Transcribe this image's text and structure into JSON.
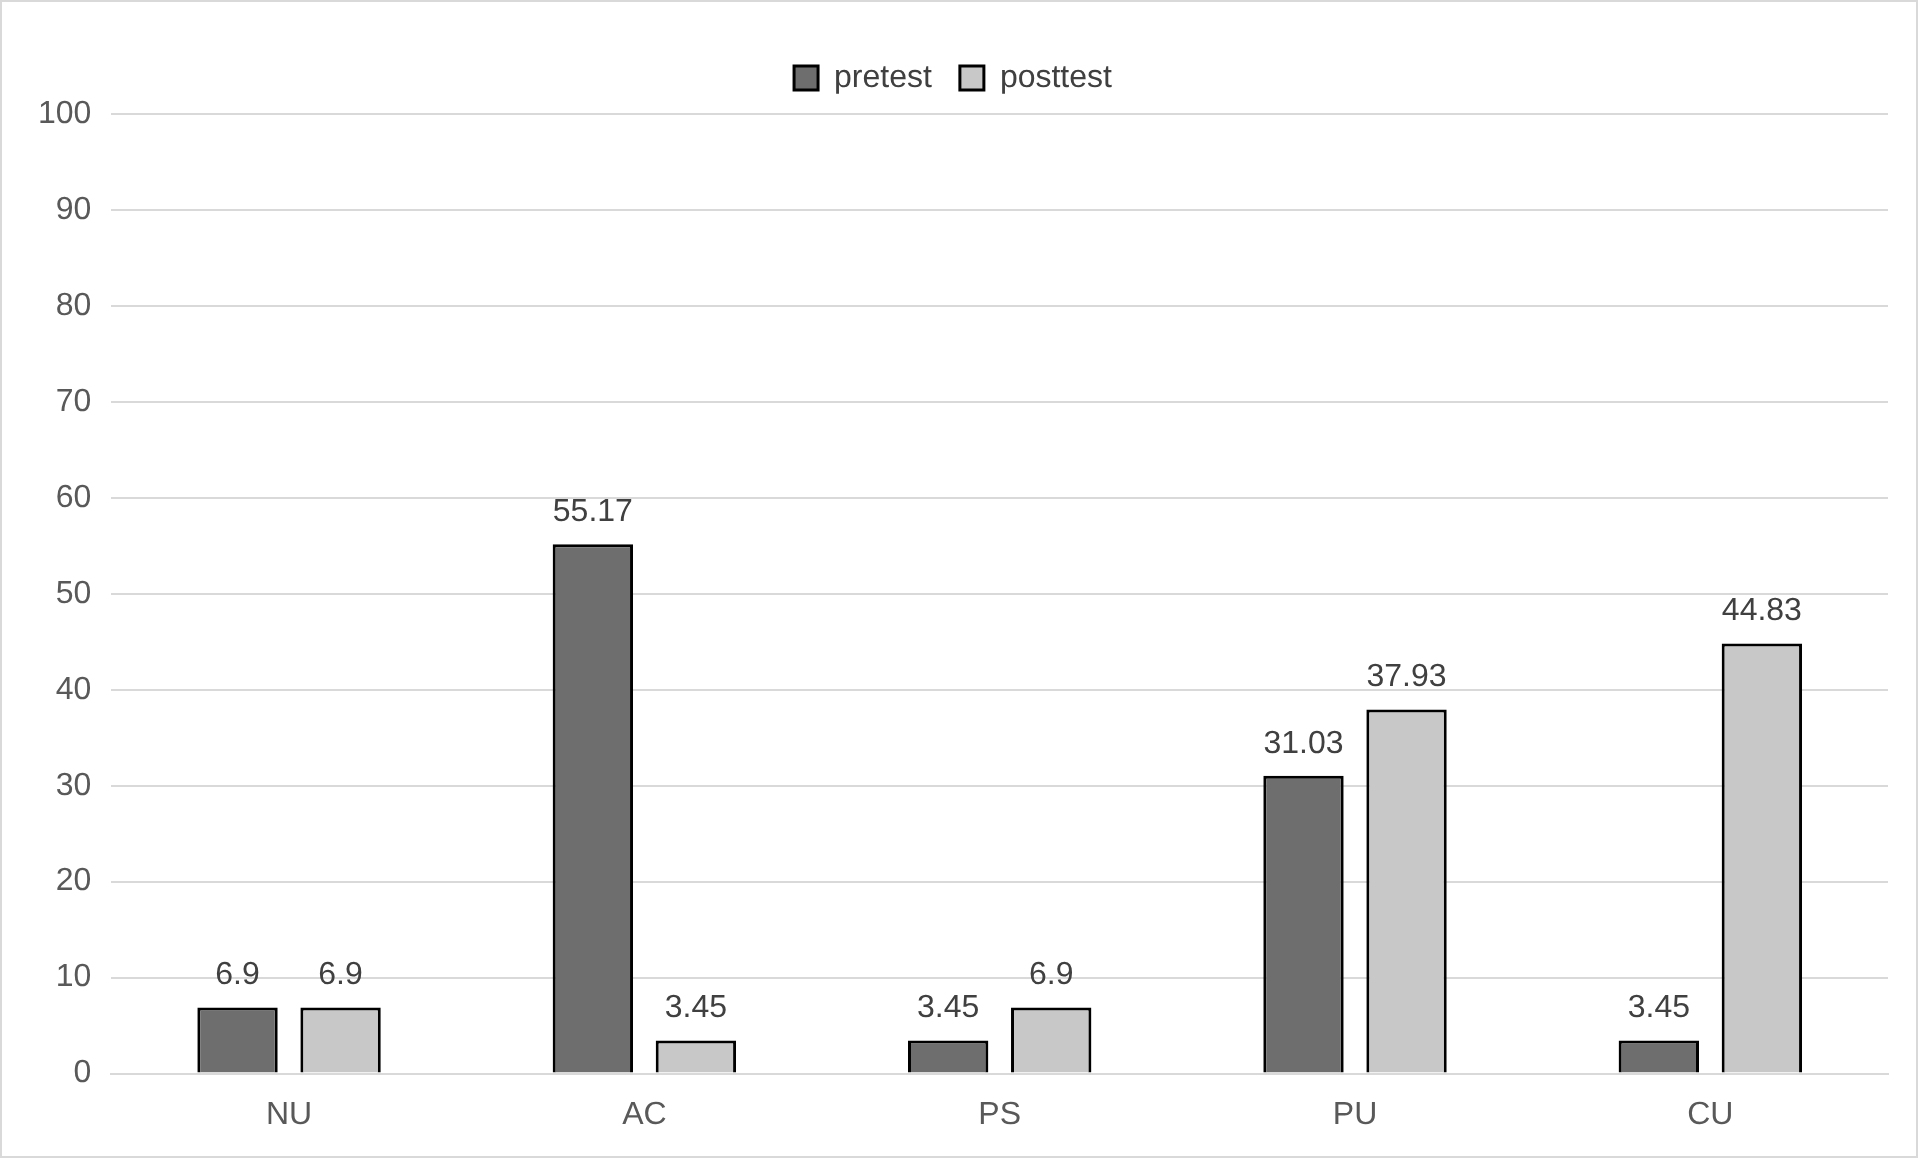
{
  "chart_data": {
    "type": "bar",
    "categories": [
      "NU",
      "AC",
      "PS",
      "PU",
      "CU"
    ],
    "series": [
      {
        "name": "pretest",
        "color": "#6e6e6e",
        "values": [
          6.9,
          55.17,
          3.45,
          31.03,
          3.45
        ]
      },
      {
        "name": "posttest",
        "color": "#c8c8c8",
        "values": [
          6.9,
          3.45,
          6.9,
          37.93,
          44.83
        ]
      }
    ],
    "ylim": [
      0,
      100
    ],
    "yticks": [
      0,
      10,
      20,
      30,
      40,
      50,
      60,
      70,
      80,
      90,
      100
    ],
    "grid": "y",
    "legend": "top",
    "data_labels": true
  }
}
